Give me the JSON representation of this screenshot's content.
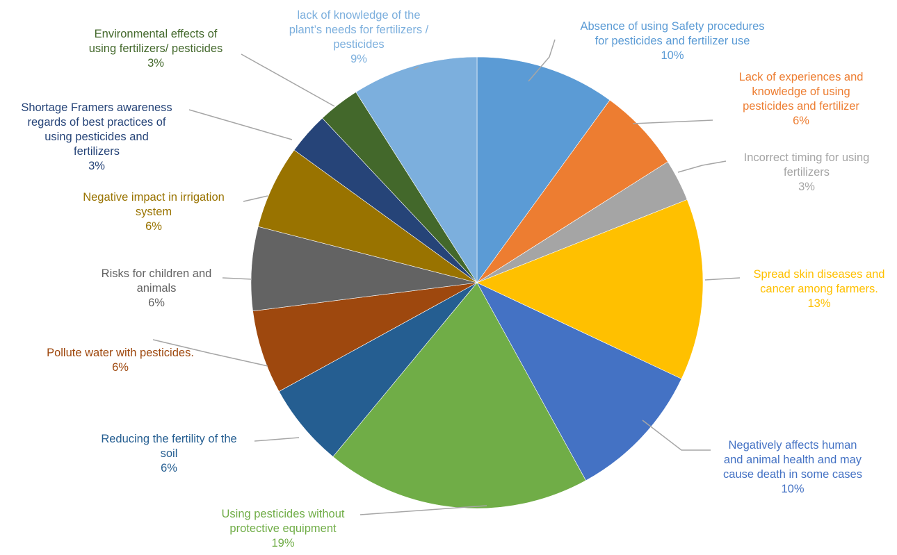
{
  "chart_data": {
    "type": "pie",
    "title": "",
    "legend": "none",
    "slices": [
      {
        "label": [
          "Absence of using Safety procedures",
          "for pesticides and fertilizer use"
        ],
        "value": 10,
        "value_label": "10%",
        "color": "#5b9bd5"
      },
      {
        "label": [
          "Lack of experiences and",
          "knowledge of using",
          "pesticides and fertilizer"
        ],
        "value": 6,
        "value_label": "6%",
        "color": "#ed7d31"
      },
      {
        "label": [
          "Incorrect timing for using",
          "fertilizers"
        ],
        "value": 3,
        "value_label": "3%",
        "color": "#a5a5a5"
      },
      {
        "label": [
          "Spread skin diseases and",
          "cancer among farmers."
        ],
        "value": 13,
        "value_label": "13%",
        "color": "#ffc000"
      },
      {
        "label": [
          "Negatively affects human",
          "and animal health and may",
          "cause death in some cases"
        ],
        "value": 10,
        "value_label": "10%",
        "color": "#4472c4"
      },
      {
        "label": [
          "Using pesticides without",
          "protective equipment"
        ],
        "value": 19,
        "value_label": "19%",
        "color": "#70ad47"
      },
      {
        "label": [
          "Reducing the fertility of the",
          "soil"
        ],
        "value": 6,
        "value_label": "6%",
        "color": "#255e91"
      },
      {
        "label": [
          "Pollute water with pesticides."
        ],
        "value": 6,
        "value_label": "6%",
        "color": "#9e480e"
      },
      {
        "label": [
          "Risks for children and",
          "animals"
        ],
        "value": 6,
        "value_label": "6%",
        "color": "#636363"
      },
      {
        "label": [
          "Negative impact in irrigation",
          "system"
        ],
        "value": 6,
        "value_label": "6%",
        "color": "#997300"
      },
      {
        "label": [
          "Shortage Framers awareness",
          "regards  of best practices of",
          "using pesticides and",
          "fertilizers"
        ],
        "value": 3,
        "value_label": "3%",
        "color": "#264478"
      },
      {
        "label": [
          "Environmental effects of",
          "using fertilizers/ pesticides"
        ],
        "value": 3,
        "value_label": "3%",
        "color": "#43682b"
      },
      {
        "label": [
          "lack of knowledge of the",
          "plant’s needs for fertilizers /",
          "pesticides"
        ],
        "value": 9,
        "value_label": "9%",
        "color": "#7cafdd"
      }
    ]
  }
}
